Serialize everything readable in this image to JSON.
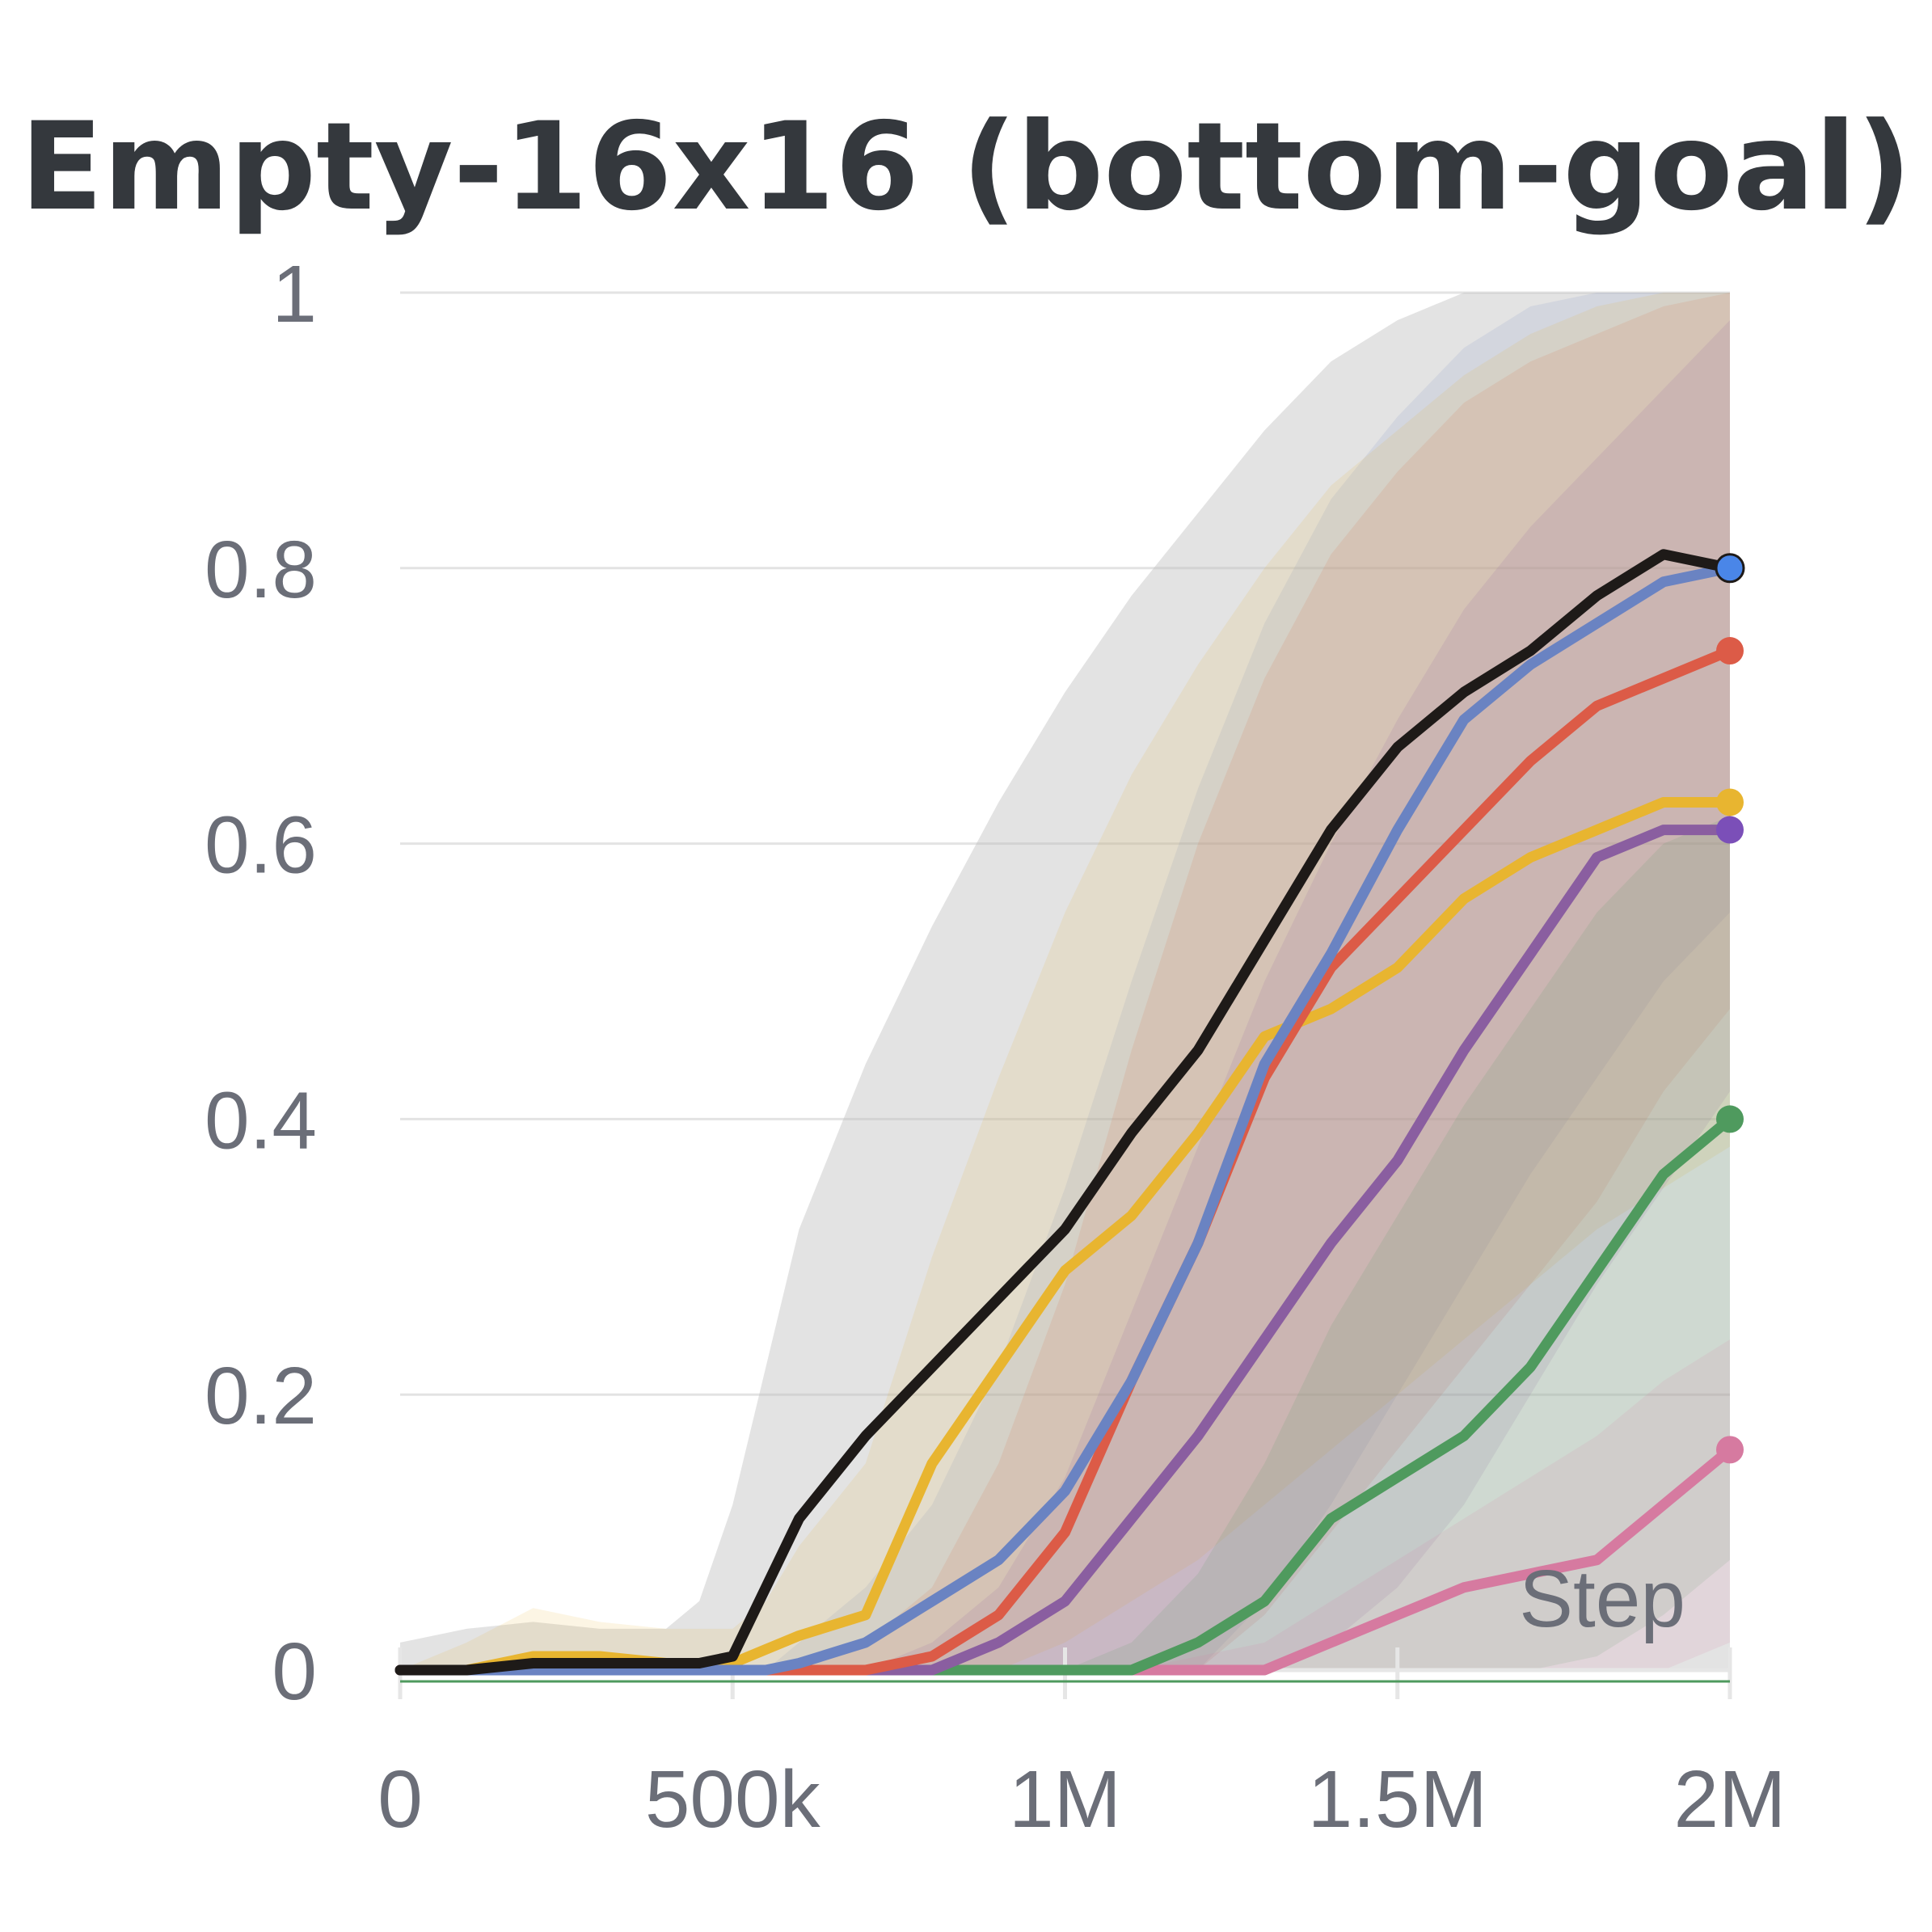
{
  "chart_data": {
    "type": "line",
    "title": "Empty-16x16 (bottom-goal)",
    "xlabel": "Step",
    "ylabel": "",
    "xlim": [
      0,
      2000000
    ],
    "ylim": [
      0,
      1
    ],
    "x_ticks": [
      0,
      500000,
      1000000,
      1500000,
      2000000
    ],
    "x_tick_labels": [
      "0",
      "500k",
      "1M",
      "1.5M",
      "2M"
    ],
    "y_ticks": [
      0,
      0.2,
      0.4,
      0.6,
      0.8,
      1
    ],
    "y_tick_labels": [
      "0",
      "0.2",
      "0.4",
      "0.6",
      "0.8",
      "1"
    ],
    "grid": true,
    "x": [
      0,
      100000,
      200000,
      300000,
      400000,
      450000,
      500000,
      550000,
      600000,
      700000,
      800000,
      900000,
      1000000,
      1100000,
      1200000,
      1300000,
      1400000,
      1500000,
      1600000,
      1700000,
      1800000,
      1900000,
      2000000
    ],
    "series": [
      {
        "name": "black",
        "color": "#1e1a18",
        "values": [
          0,
          0,
          0.005,
          0.005,
          0.005,
          0.005,
          0.01,
          0.06,
          0.11,
          0.17,
          0.22,
          0.27,
          0.32,
          0.39,
          0.45,
          0.53,
          0.61,
          0.67,
          0.71,
          0.74,
          0.78,
          0.81,
          0.8
        ],
        "upper": [
          0.02,
          0.03,
          0.035,
          0.03,
          0.03,
          0.05,
          0.12,
          0.22,
          0.32,
          0.44,
          0.54,
          0.63,
          0.71,
          0.78,
          0.84,
          0.9,
          0.95,
          0.98,
          1,
          1,
          1,
          1,
          1
        ],
        "lower": [
          0,
          0,
          0,
          0,
          0,
          0,
          0,
          0,
          0,
          0,
          0,
          0,
          0,
          0,
          0,
          0,
          0,
          0,
          0,
          0,
          0,
          0,
          0
        ]
      },
      {
        "name": "blue",
        "color": "#6a83c2",
        "values": [
          0,
          0,
          0,
          0,
          0,
          0,
          0,
          0,
          0.005,
          0.02,
          0.05,
          0.08,
          0.13,
          0.21,
          0.31,
          0.44,
          0.52,
          0.61,
          0.69,
          0.73,
          0.76,
          0.79,
          0.8
        ],
        "upper": [
          0,
          0,
          0,
          0,
          0,
          0,
          0,
          0,
          0.02,
          0.06,
          0.12,
          0.22,
          0.35,
          0.5,
          0.64,
          0.76,
          0.85,
          0.91,
          0.96,
          0.99,
          1,
          1,
          1
        ],
        "lower": [
          0,
          0,
          0,
          0,
          0,
          0,
          0,
          0,
          0,
          0,
          0,
          0,
          0,
          0,
          0,
          0.05,
          0.12,
          0.2,
          0.28,
          0.36,
          0.43,
          0.5,
          0.55
        ]
      },
      {
        "name": "red",
        "color": "#dc5b47",
        "values": [
          0,
          0,
          0,
          0,
          0,
          0,
          0,
          0,
          0,
          0,
          0.01,
          0.04,
          0.1,
          0.21,
          0.31,
          0.43,
          0.51,
          0.56,
          0.61,
          0.66,
          0.7,
          0.72,
          0.74
        ],
        "upper": [
          0,
          0,
          0,
          0,
          0,
          0,
          0,
          0,
          0,
          0.02,
          0.06,
          0.15,
          0.28,
          0.45,
          0.6,
          0.72,
          0.81,
          0.87,
          0.92,
          0.95,
          0.97,
          0.99,
          1
        ],
        "lower": [
          0,
          0,
          0,
          0,
          0,
          0,
          0,
          0,
          0,
          0,
          0,
          0,
          0,
          0,
          0,
          0.04,
          0.1,
          0.16,
          0.22,
          0.28,
          0.34,
          0.42,
          0.48
        ]
      },
      {
        "name": "yellow",
        "color": "#e8b530",
        "values": [
          0,
          0,
          0.01,
          0.01,
          0.005,
          0.005,
          0.005,
          0.015,
          0.025,
          0.04,
          0.15,
          0.22,
          0.29,
          0.33,
          0.39,
          0.46,
          0.48,
          0.51,
          0.56,
          0.59,
          0.61,
          0.63,
          0.63
        ],
        "upper": [
          0,
          0.02,
          0.045,
          0.035,
          0.03,
          0.03,
          0.03,
          0.05,
          0.09,
          0.15,
          0.3,
          0.43,
          0.55,
          0.65,
          0.73,
          0.8,
          0.86,
          0.9,
          0.94,
          0.97,
          0.99,
          1,
          1
        ],
        "lower": [
          0,
          0,
          0,
          0,
          0,
          0,
          0,
          0,
          0,
          0,
          0,
          0,
          0.02,
          0.05,
          0.08,
          0.12,
          0.16,
          0.2,
          0.24,
          0.28,
          0.32,
          0.35,
          0.38
        ]
      },
      {
        "name": "purple",
        "color": "#8a5ea0",
        "values": [
          0,
          0,
          0,
          0,
          0,
          0,
          0,
          0,
          0,
          0,
          0,
          0.02,
          0.05,
          0.11,
          0.17,
          0.24,
          0.31,
          0.37,
          0.45,
          0.52,
          0.59,
          0.61,
          0.61
        ],
        "upper": [
          0,
          0,
          0,
          0,
          0,
          0,
          0,
          0,
          0,
          0,
          0.02,
          0.06,
          0.14,
          0.26,
          0.38,
          0.5,
          0.6,
          0.69,
          0.77,
          0.83,
          0.88,
          0.93,
          0.98
        ],
        "lower": [
          0,
          0,
          0,
          0,
          0,
          0,
          0,
          0,
          0,
          0,
          0,
          0,
          0,
          0,
          0,
          0,
          0.02,
          0.06,
          0.12,
          0.2,
          0.28,
          0.35,
          0.42
        ]
      },
      {
        "name": "green",
        "color": "#4f9a5e",
        "values": [
          0,
          0,
          0,
          0,
          0,
          0,
          0,
          0,
          0,
          0,
          0,
          0,
          0,
          0,
          0.02,
          0.05,
          0.11,
          0.14,
          0.17,
          0.22,
          0.29,
          0.36,
          0.4
        ],
        "upper": [
          0,
          0,
          0,
          0,
          0,
          0,
          0,
          0,
          0,
          0,
          0,
          0,
          0,
          0.02,
          0.07,
          0.15,
          0.25,
          0.33,
          0.41,
          0.48,
          0.55,
          0.6,
          0.62
        ],
        "lower": [
          0,
          0,
          0,
          0,
          0,
          0,
          0,
          0,
          0,
          0,
          0,
          0,
          0,
          0,
          0,
          0,
          0,
          0,
          0,
          0,
          0.01,
          0.04,
          0.08
        ]
      },
      {
        "name": "pink",
        "color": "#d67aa0",
        "values": [
          0,
          0,
          0,
          0,
          0,
          0,
          0,
          0,
          0,
          0,
          0,
          0,
          0,
          0,
          0,
          0,
          0.02,
          0.04,
          0.06,
          0.07,
          0.08,
          0.12,
          0.16
        ],
        "upper": [
          0,
          0,
          0,
          0,
          0,
          0,
          0,
          0,
          0,
          0,
          0,
          0,
          0,
          0,
          0.01,
          0.02,
          0.05,
          0.08,
          0.11,
          0.14,
          0.17,
          0.21,
          0.24
        ],
        "lower": [
          0,
          0,
          0,
          0,
          0,
          0,
          0,
          0,
          0,
          0,
          0,
          0,
          0,
          0,
          0,
          0,
          0,
          0,
          0,
          0,
          0,
          0,
          0.02
        ]
      }
    ],
    "end_markers": [
      {
        "series": "blue",
        "x": 2000000,
        "y": 0.8
      },
      {
        "series": "red",
        "x": 2000000,
        "y": 0.74
      },
      {
        "series": "yellow",
        "x": 2000000,
        "y": 0.63
      },
      {
        "series": "purple",
        "x": 2000000,
        "y": 0.61
      },
      {
        "series": "green",
        "x": 2000000,
        "y": 0.4
      },
      {
        "series": "pink",
        "x": 2000000,
        "y": 0.16
      }
    ]
  }
}
